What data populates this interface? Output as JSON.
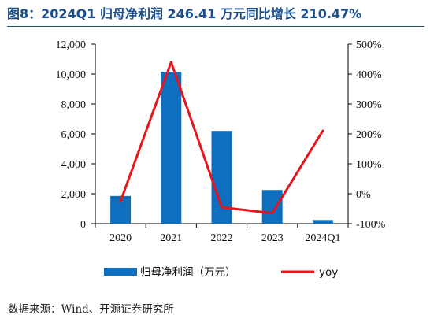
{
  "title": "图8：2024Q1 归母净利润 246.41 万元同比增长 210.47%",
  "source": "数据来源：Wind、开源证券研究所",
  "colors": {
    "bar": "#0f6fbf",
    "line": "#e8141c",
    "title": "#1a4f8b"
  },
  "chart_data": {
    "type": "bar",
    "categories": [
      "2020",
      "2021",
      "2022",
      "2023",
      "2024Q1"
    ],
    "series": [
      {
        "name": "归母净利润（万元）",
        "type": "bar",
        "axis": "left",
        "values": [
          1850,
          10150,
          6200,
          2250,
          246.41
        ]
      },
      {
        "name": "yoy",
        "type": "line",
        "axis": "right",
        "values": [
          -25,
          440,
          -45,
          -65,
          210.47
        ]
      }
    ],
    "y_left": {
      "lim": [
        0,
        12000
      ],
      "ticks": [
        0,
        2000,
        4000,
        6000,
        8000,
        10000,
        12000
      ],
      "tick_labels": [
        "0",
        "2,000",
        "4,000",
        "6,000",
        "8,000",
        "10,000",
        "12,000"
      ]
    },
    "y_right": {
      "lim": [
        -100,
        500
      ],
      "ticks": [
        -100,
        0,
        100,
        200,
        300,
        400,
        500
      ],
      "tick_labels": [
        "-100%",
        "0%",
        "100%",
        "200%",
        "300%",
        "400%",
        "500%"
      ]
    },
    "legend_position": "bottom",
    "grid": false
  }
}
